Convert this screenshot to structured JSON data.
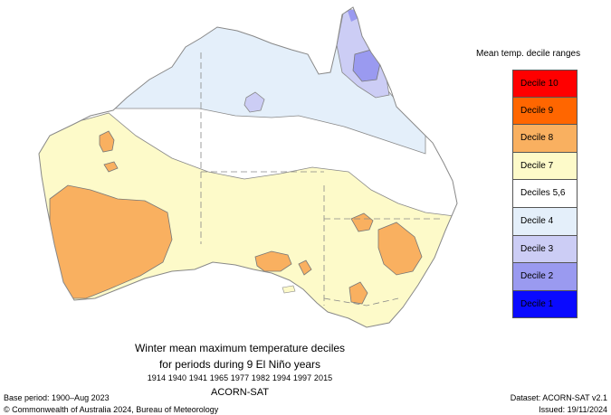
{
  "map": {
    "caption": {
      "line1": "Winter mean maximum temperature deciles",
      "line2": "for periods during 9 El Niño years",
      "years": "1914 1940 1941 1965 1977 1982 1994 1997 2015",
      "dataset_name": "ACORN-SAT"
    },
    "base_period": "Base period: 1900–Aug 2023",
    "copyright": "© Commonwealth of Australia 2024, Bureau of Meteorology",
    "dataset": "Dataset: ACORN-SAT v2.1",
    "issued": "Issued: 19/11/2024"
  },
  "legend": {
    "title": "Mean temp. decile ranges",
    "entries": [
      {
        "label": "Decile 10",
        "color": "#ff0000"
      },
      {
        "label": "Decile 9",
        "color": "#ff6600"
      },
      {
        "label": "Decile 8",
        "color": "#f9b060"
      },
      {
        "label": "Decile 7",
        "color": "#fdfac9"
      },
      {
        "label": "Deciles 5,6",
        "color": "#ffffff"
      },
      {
        "label": "Decile 4",
        "color": "#e4effa"
      },
      {
        "label": "Decile 3",
        "color": "#cccdf5"
      },
      {
        "label": "Decile 2",
        "color": "#9a9af0"
      },
      {
        "label": "Decile 1",
        "color": "#0a0aff"
      }
    ]
  }
}
